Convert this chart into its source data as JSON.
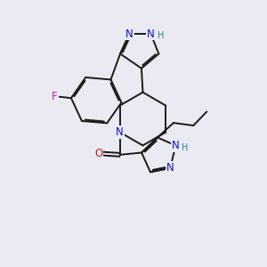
{
  "bg_color": "#eaeaf2",
  "bond_color": "#1a1a1a",
  "bond_width": 1.4,
  "N_color": "#1111cc",
  "O_color": "#cc1111",
  "F_color": "#cc11cc",
  "H_color": "#228888",
  "font_size_atoms": 8.5,
  "font_size_H": 7.0,
  "xlim": [
    0,
    10
  ],
  "ylim": [
    0,
    10
  ]
}
